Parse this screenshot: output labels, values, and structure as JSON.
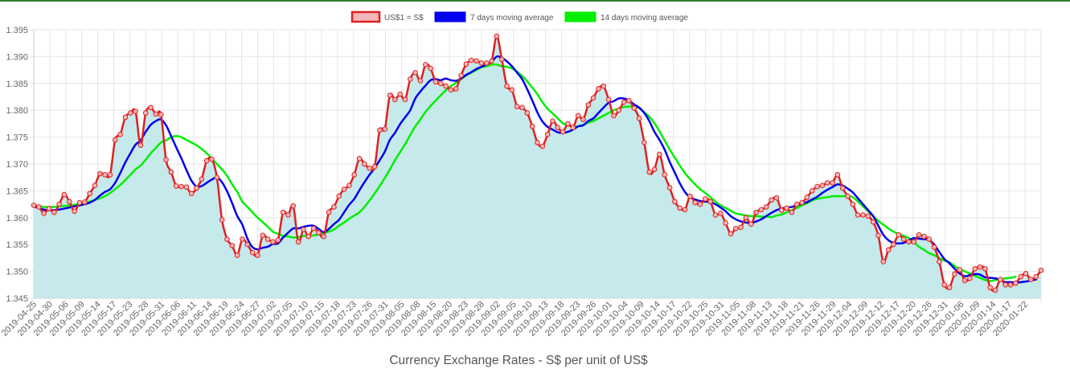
{
  "chart_data": {
    "type": "line",
    "title": "",
    "caption": "Currency Exchange Rates - S$ per unit of US$",
    "xlabel": "",
    "ylabel": "",
    "ylim": [
      1.345,
      1.395
    ],
    "yticks": [
      1.345,
      1.35,
      1.355,
      1.36,
      1.365,
      1.37,
      1.375,
      1.38,
      1.385,
      1.39,
      1.395
    ],
    "ytick_labels": [
      "1.345",
      "1.350",
      "1.355",
      "1.360",
      "1.365",
      "1.370",
      "1.375",
      "1.380",
      "1.385",
      "1.390",
      "1.395"
    ],
    "grid": true,
    "legend_position": "top",
    "x_tick_labels": [
      "2019-04-25",
      "2019-04-30",
      "2019-05-06",
      "2019-05-09",
      "2019-05-14",
      "2019-05-17",
      "2019-05-23",
      "2019-05-28",
      "2019-05-31",
      "2019-06-06",
      "2019-06-11",
      "2019-06-14",
      "2019-06-19",
      "2019-06-24",
      "2019-06-27",
      "2019-07-02",
      "2019-07-05",
      "2019-07-10",
      "2019-07-15",
      "2019-07-18",
      "2019-07-23",
      "2019-07-26",
      "2019-07-31",
      "2019-08-05",
      "2019-08-08",
      "2019-08-15",
      "2019-08-20",
      "2019-08-23",
      "2019-08-28",
      "2019-09-02",
      "2019-09-05",
      "2019-09-10",
      "2019-09-13",
      "2019-09-18",
      "2019-09-23",
      "2019-09-26",
      "2019-10-01",
      "2019-10-04",
      "2019-10-09",
      "2019-10-14",
      "2019-10-17",
      "2019-10-22",
      "2019-10-25",
      "2019-10-31",
      "2019-11-05",
      "2019-11-08",
      "2019-11-13",
      "2019-11-18",
      "2019-11-21",
      "2019-11-26",
      "2019-11-29",
      "2019-12-04",
      "2019-12-09",
      "2019-12-12",
      "2019-12-17",
      "2019-12-20",
      "2019-12-26",
      "2019-12-31",
      "2020-01-06",
      "2020-01-09",
      "2020-01-14",
      "2020-01-17",
      "2020-01-22"
    ],
    "series": [
      {
        "name": "US$1 = S$",
        "color": "#e02020",
        "values": [
          1.3623,
          1.362,
          1.3608,
          1.3617,
          1.361,
          1.3625,
          1.3643,
          1.363,
          1.3612,
          1.3628,
          1.3629,
          1.3645,
          1.366,
          1.3682,
          1.368,
          1.368,
          1.3745,
          1.3755,
          1.3787,
          1.3795,
          1.3798,
          1.3735,
          1.3795,
          1.3805,
          1.3793,
          1.3792,
          1.3708,
          1.3685,
          1.3659,
          1.3658,
          1.3657,
          1.3645,
          1.3655,
          1.3672,
          1.3706,
          1.3709,
          1.3675,
          1.3596,
          1.356,
          1.3548,
          1.353,
          1.356,
          1.355,
          1.3535,
          1.353,
          1.3567,
          1.356,
          1.3555,
          1.3558,
          1.361,
          1.3605,
          1.3622,
          1.3555,
          1.3578,
          1.3565,
          1.358,
          1.3572,
          1.3565,
          1.361,
          1.362,
          1.364,
          1.3653,
          1.366,
          1.368,
          1.371,
          1.37,
          1.3692,
          1.3695,
          1.3763,
          1.3765,
          1.3828,
          1.382,
          1.383,
          1.382,
          1.3858,
          1.387,
          1.3855,
          1.3885,
          1.3878,
          1.3853,
          1.385,
          1.3845,
          1.3838,
          1.384,
          1.3865,
          1.3886,
          1.3893,
          1.3892,
          1.3888,
          1.3888,
          1.3892,
          1.3938,
          1.3895,
          1.3845,
          1.3838,
          1.3807,
          1.3805,
          1.3795,
          1.377,
          1.374,
          1.3733,
          1.3755,
          1.378,
          1.3768,
          1.376,
          1.3775,
          1.3768,
          1.379,
          1.3783,
          1.381,
          1.3823,
          1.384,
          1.3845,
          1.382,
          1.379,
          1.38,
          1.3815,
          1.3818,
          1.3804,
          1.3785,
          1.374,
          1.3685,
          1.369,
          1.3718,
          1.368,
          1.3656,
          1.363,
          1.3618,
          1.3615,
          1.364,
          1.3628,
          1.3625,
          1.3635,
          1.363,
          1.3605,
          1.3608,
          1.359,
          1.357,
          1.358,
          1.3582,
          1.36,
          1.3588,
          1.361,
          1.3615,
          1.362,
          1.3633,
          1.3637,
          1.3614,
          1.3618,
          1.361,
          1.3625,
          1.3628,
          1.3638,
          1.365,
          1.3658,
          1.366,
          1.3665,
          1.3665,
          1.368,
          1.3655,
          1.364,
          1.3625,
          1.3605,
          1.3605,
          1.3603,
          1.3592,
          1.3567,
          1.3518,
          1.354,
          1.355,
          1.3568,
          1.356,
          1.3555,
          1.3555,
          1.3568,
          1.3565,
          1.356,
          1.3545,
          1.3518,
          1.3475,
          1.347,
          1.3495,
          1.3503,
          1.3483,
          1.3487,
          1.3505,
          1.3508,
          1.3505,
          1.347,
          1.3465,
          1.3485,
          1.3475,
          1.3475,
          1.3478,
          1.349,
          1.3496,
          1.3485,
          1.349,
          1.3502
        ]
      },
      {
        "name": "7 days moving average",
        "color": "#0000ee",
        "values": [
          1.3621,
          1.3618,
          1.3615,
          1.3614,
          1.3614,
          1.3615,
          1.3617,
          1.3619,
          1.3621,
          1.3623,
          1.3625,
          1.3628,
          1.3633,
          1.3641,
          1.3648,
          1.3653,
          1.3665,
          1.3683,
          1.3703,
          1.372,
          1.3736,
          1.3744,
          1.376,
          1.3773,
          1.378,
          1.3783,
          1.3772,
          1.3752,
          1.3731,
          1.3711,
          1.3689,
          1.3669,
          1.3658,
          1.3659,
          1.3665,
          1.3671,
          1.3675,
          1.3666,
          1.3649,
          1.3627,
          1.3603,
          1.3587,
          1.3561,
          1.3545,
          1.3541,
          1.3544,
          1.3546,
          1.3551,
          1.3552,
          1.3563,
          1.3572,
          1.358,
          1.358,
          1.3583,
          1.3585,
          1.3585,
          1.3579,
          1.3573,
          1.3579,
          1.3588,
          1.3596,
          1.361,
          1.3624,
          1.3635,
          1.3651,
          1.3666,
          1.368,
          1.3692,
          1.3707,
          1.3723,
          1.3745,
          1.3758,
          1.3774,
          1.3787,
          1.38,
          1.3822,
          1.3835,
          1.3846,
          1.3856,
          1.3858,
          1.3856,
          1.3859,
          1.3856,
          1.3855,
          1.3859,
          1.3866,
          1.3871,
          1.3877,
          1.3881,
          1.3885,
          1.389,
          1.39,
          1.3898,
          1.3891,
          1.3882,
          1.387,
          1.3858,
          1.3839,
          1.3818,
          1.3796,
          1.3779,
          1.3769,
          1.3764,
          1.3759,
          1.3758,
          1.376,
          1.3764,
          1.377,
          1.3772,
          1.378,
          1.3785,
          1.3795,
          1.3805,
          1.3814,
          1.3817,
          1.3822,
          1.3822,
          1.3818,
          1.3811,
          1.3805,
          1.3795,
          1.378,
          1.376,
          1.3745,
          1.3727,
          1.3704,
          1.3684,
          1.3664,
          1.3648,
          1.3638,
          1.3634,
          1.3631,
          1.363,
          1.3629,
          1.3625,
          1.3619,
          1.3612,
          1.3603,
          1.3597,
          1.3593,
          1.3591,
          1.359,
          1.3593,
          1.3597,
          1.3603,
          1.3609,
          1.3614,
          1.3617,
          1.3619,
          1.362,
          1.3623,
          1.3626,
          1.3629,
          1.3634,
          1.3639,
          1.3646,
          1.3652,
          1.3657,
          1.3662,
          1.366,
          1.3654,
          1.3647,
          1.3636,
          1.3625,
          1.3614,
          1.3603,
          1.3585,
          1.3568,
          1.3558,
          1.3553,
          1.3552,
          1.3553,
          1.3558,
          1.3562,
          1.3561,
          1.356,
          1.3559,
          1.355,
          1.3536,
          1.3523,
          1.3515,
          1.3505,
          1.3496,
          1.3491,
          1.3493,
          1.3495,
          1.3494,
          1.3489,
          1.3488,
          1.3487,
          1.3484,
          1.348,
          1.348,
          1.3479,
          1.348,
          1.3481,
          1.3483,
          1.3485
        ]
      },
      {
        "name": "14 days moving average",
        "color": "#00ee00",
        "values": [
          1.3622,
          1.3621,
          1.362,
          1.362,
          1.362,
          1.3621,
          1.3622,
          1.3623,
          1.3624,
          1.3626,
          1.3628,
          1.363,
          1.3633,
          1.3636,
          1.364,
          1.3646,
          1.3653,
          1.3661,
          1.367,
          1.368,
          1.369,
          1.3697,
          1.3708,
          1.372,
          1.373,
          1.374,
          1.3744,
          1.375,
          1.3752,
          1.375,
          1.3745,
          1.374,
          1.3735,
          1.3728,
          1.372,
          1.371,
          1.37,
          1.369,
          1.3678,
          1.3662,
          1.3648,
          1.363,
          1.362,
          1.361,
          1.36,
          1.3592,
          1.3583,
          1.3574,
          1.357,
          1.3566,
          1.3565,
          1.3563,
          1.3564,
          1.3566,
          1.3566,
          1.3567,
          1.3569,
          1.3572,
          1.3574,
          1.3578,
          1.3585,
          1.3591,
          1.3598,
          1.3604,
          1.361,
          1.362,
          1.3632,
          1.3645,
          1.3659,
          1.3674,
          1.369,
          1.3707,
          1.3722,
          1.3737,
          1.3754,
          1.377,
          1.3783,
          1.3797,
          1.3808,
          1.3818,
          1.3828,
          1.3837,
          1.3845,
          1.3851,
          1.3858,
          1.3865,
          1.387,
          1.3875,
          1.388,
          1.3882,
          1.3885,
          1.3885,
          1.3882,
          1.3881,
          1.3878,
          1.3872,
          1.3864,
          1.3854,
          1.3842,
          1.383,
          1.3815,
          1.3803,
          1.3794,
          1.3785,
          1.3776,
          1.3772,
          1.377,
          1.377,
          1.3773,
          1.3777,
          1.378,
          1.3785,
          1.379,
          1.3795,
          1.38,
          1.3803,
          1.3806,
          1.3807,
          1.3806,
          1.3804,
          1.3796,
          1.3788,
          1.3776,
          1.3761,
          1.3744,
          1.3727,
          1.3712,
          1.3697,
          1.3683,
          1.3672,
          1.3662,
          1.3653,
          1.3646,
          1.3638,
          1.363,
          1.3623,
          1.3618,
          1.3613,
          1.3608,
          1.3606,
          1.3604,
          1.3603,
          1.3603,
          1.3602,
          1.3602,
          1.3601,
          1.3604,
          1.3606,
          1.361,
          1.3614,
          1.3618,
          1.3623,
          1.3627,
          1.3632,
          1.3635,
          1.3637,
          1.3638,
          1.364,
          1.364,
          1.364,
          1.364,
          1.3638,
          1.363,
          1.3621,
          1.3612,
          1.3603,
          1.3594,
          1.3587,
          1.358,
          1.3574,
          1.357,
          1.3566,
          1.3562,
          1.3555,
          1.3546,
          1.354,
          1.3534,
          1.353,
          1.3525,
          1.352,
          1.3517,
          1.351,
          1.3505,
          1.35,
          1.3496,
          1.3492,
          1.3488,
          1.3484,
          1.3482,
          1.3484,
          1.3485,
          1.3487,
          1.3488,
          1.349
        ]
      }
    ]
  }
}
